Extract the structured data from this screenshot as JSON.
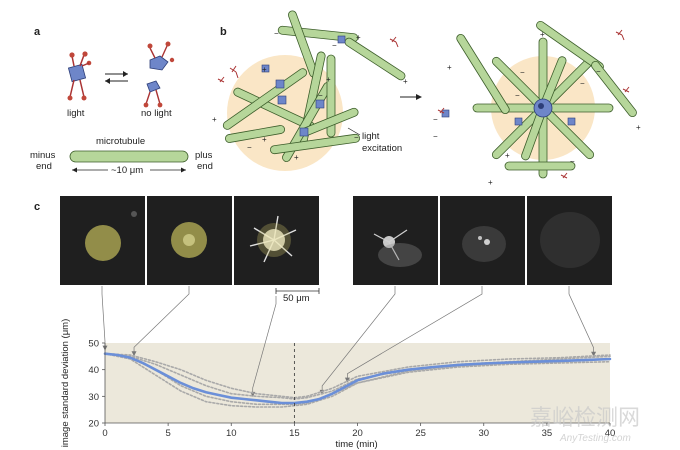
{
  "panels": {
    "a": {
      "label": "a",
      "light_label": "light",
      "no_light_label": "no light",
      "microtubule_label": "microtubule",
      "minus_label_1": "minus",
      "minus_label_2": "end",
      "plus_label_1": "plus",
      "plus_label_2": "end",
      "length_label": "~10 μm"
    },
    "b": {
      "label": "b",
      "excitation_label_1": "light",
      "excitation_label_2": "excitation"
    },
    "c": {
      "label": "c",
      "scale_bar_label": "50 μm"
    }
  },
  "watermark": {
    "text_cn": "嘉峪检测网",
    "text_en": "AnyTesting.com"
  },
  "chart_data": {
    "type": "line",
    "xlabel": "time (min)",
    "ylabel": "image standard deviation (μm)",
    "xlim": [
      0,
      40
    ],
    "ylim": [
      20,
      50
    ],
    "xticks": [
      0,
      5,
      10,
      15,
      20,
      25,
      30,
      35,
      40
    ],
    "yticks": [
      20,
      30,
      40,
      50
    ],
    "light_off_time": 15,
    "snapshot_times": [
      0,
      2.3,
      11.7,
      17.2,
      19.2,
      38.7
    ],
    "series": [
      {
        "role": "mean",
        "color": "#6b8fd8",
        "x": [
          0,
          1,
          2,
          3,
          4,
          5,
          6,
          7,
          8,
          9,
          10,
          11,
          12,
          13,
          14,
          15,
          16,
          17,
          18,
          19,
          20,
          22,
          24,
          26,
          28,
          30,
          32,
          34,
          36,
          38,
          40
        ],
        "y": [
          46,
          45.5,
          44.5,
          42.5,
          40,
          37.5,
          35,
          33,
          31.5,
          30.5,
          29.5,
          29,
          28.5,
          28,
          27.5,
          27.5,
          28,
          29,
          31,
          33.5,
          36,
          38.5,
          40,
          41,
          41.8,
          42.3,
          42.7,
          43,
          43.3,
          43.6,
          44
        ]
      },
      {
        "role": "replicate",
        "color": "#a9a9a9",
        "x": [
          0,
          2,
          4,
          6,
          8,
          10,
          12,
          14,
          15,
          16,
          18,
          20,
          24,
          28,
          32,
          36,
          40
        ],
        "y": [
          46,
          44,
          38,
          32,
          28,
          26.5,
          26,
          26,
          26.5,
          27,
          30,
          35,
          39,
          41,
          42,
          42.5,
          43
        ]
      },
      {
        "role": "replicate",
        "color": "#a9a9a9",
        "x": [
          0,
          2,
          4,
          6,
          8,
          10,
          12,
          14,
          15,
          16,
          18,
          20,
          24,
          28,
          32,
          36,
          40
        ],
        "y": [
          46,
          45,
          42,
          38,
          34,
          31,
          30,
          29.5,
          29,
          29.5,
          32,
          36.5,
          40,
          42,
          43,
          44,
          45
        ]
      },
      {
        "role": "replicate",
        "color": "#a9a9a9",
        "x": [
          0,
          2,
          4,
          6,
          8,
          10,
          12,
          14,
          15,
          16,
          18,
          20,
          24,
          28,
          32,
          36,
          40
        ],
        "y": [
          46,
          44.5,
          40,
          34,
          30,
          28,
          27,
          27,
          27,
          27.5,
          31,
          35,
          39.5,
          41.5,
          42.5,
          43,
          44
        ]
      },
      {
        "role": "replicate",
        "color": "#a9a9a9",
        "x": [
          0,
          2,
          4,
          6,
          8,
          10,
          12,
          14,
          15,
          16,
          18,
          20,
          24,
          28,
          32,
          36,
          40
        ],
        "y": [
          46,
          45.5,
          43,
          40,
          36,
          33,
          31,
          30,
          29.5,
          30,
          33,
          37.5,
          41,
          43,
          44,
          44.5,
          45.5
        ]
      }
    ]
  }
}
